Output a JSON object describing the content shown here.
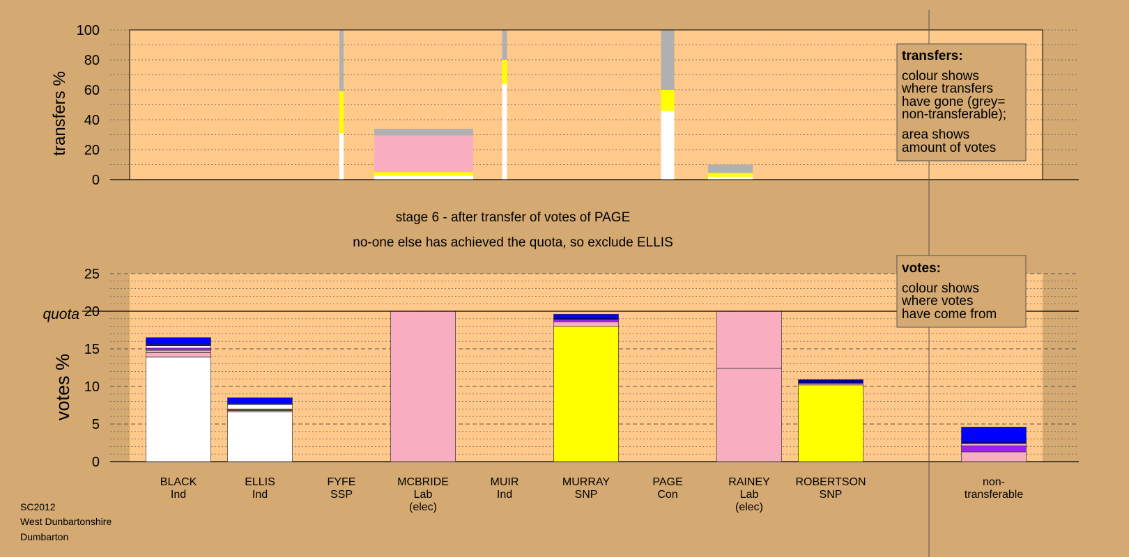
{
  "colors": {
    "background": "#d4a972",
    "plot_area": "#ffc98c",
    "white": "#ffffff",
    "pink": "#f9adc1",
    "yellow": "#ffff00",
    "blue": "#0000ff",
    "navy": "#000080",
    "purple": "#a020f0",
    "brown": "#8b4513",
    "grey": "#b0b0b0"
  },
  "captions": {
    "stage": "stage 6 - after transfer of votes of PAGE",
    "note": "no-one else has achieved the quota, so exclude ELLIS"
  },
  "legend_transfers": {
    "title": "transfers:",
    "lines": [
      "colour shows",
      "where transfers",
      "have gone (grey=",
      "non-transferable);",
      "area shows",
      "amount of votes"
    ]
  },
  "legend_votes": {
    "title": "votes:",
    "lines": [
      "colour shows",
      "where votes",
      "have come from"
    ]
  },
  "footer": [
    "SC2012",
    "West Dunbartonshire",
    "Dumbarton"
  ],
  "chart_data": [
    {
      "type": "bar",
      "ylabel": "transfers %",
      "ylim": [
        0,
        100
      ],
      "yticks": [
        0,
        20,
        40,
        60,
        80,
        100
      ],
      "grid": true,
      "legend_position": "top-right",
      "bars": [
        {
          "category": "FYFE",
          "segments": [
            {
              "color": "white",
              "from": 0,
              "to": 31
            },
            {
              "color": "yellow",
              "from": 31,
              "to": 59
            },
            {
              "color": "grey",
              "from": 59,
              "to": 100
            }
          ]
        },
        {
          "category": "MCBRIDE",
          "segments": [
            {
              "color": "white",
              "from": 0,
              "to": 2.5
            },
            {
              "color": "yellow",
              "from": 2.5,
              "to": 5
            },
            {
              "color": "pink",
              "from": 5,
              "to": 29.5
            },
            {
              "color": "grey",
              "from": 29.5,
              "to": 34
            }
          ]
        },
        {
          "category": "MUIR",
          "segments": [
            {
              "color": "white",
              "from": 0,
              "to": 64
            },
            {
              "color": "yellow",
              "from": 64,
              "to": 80
            },
            {
              "color": "grey",
              "from": 80,
              "to": 100
            }
          ]
        },
        {
          "category": "PAGE",
          "segments": [
            {
              "color": "white",
              "from": 0,
              "to": 46
            },
            {
              "color": "yellow",
              "from": 46,
              "to": 60
            },
            {
              "color": "grey",
              "from": 60,
              "to": 100
            }
          ]
        },
        {
          "category": "RAINEY",
          "segments": [
            {
              "color": "white",
              "from": 0,
              "to": 2
            },
            {
              "color": "yellow",
              "from": 2,
              "to": 4.5
            },
            {
              "color": "grey",
              "from": 4.5,
              "to": 10
            }
          ]
        }
      ]
    },
    {
      "type": "bar",
      "ylabel": "votes %",
      "ylim": [
        0,
        25
      ],
      "yticks": [
        0,
        5,
        10,
        15,
        20,
        25
      ],
      "quota": 20,
      "quota_label": "quota",
      "grid": true,
      "legend_position": "top-right",
      "categories": [
        {
          "name": "BLACK",
          "party": "Ind",
          "elected": ""
        },
        {
          "name": "ELLIS",
          "party": "Ind",
          "elected": ""
        },
        {
          "name": "FYFE",
          "party": "SSP",
          "elected": ""
        },
        {
          "name": "MCBRIDE",
          "party": "Lab",
          "elected": "(elec)"
        },
        {
          "name": "MUIR",
          "party": "Ind",
          "elected": ""
        },
        {
          "name": "MURRAY",
          "party": "SNP",
          "elected": ""
        },
        {
          "name": "PAGE",
          "party": "Con",
          "elected": ""
        },
        {
          "name": "RAINEY",
          "party": "Lab",
          "elected": "(elec)"
        },
        {
          "name": "ROBERTSON",
          "party": "SNP",
          "elected": ""
        },
        {
          "name": "",
          "party": "",
          "elected": ""
        },
        {
          "name": "non-",
          "party": "transferable",
          "elected": ""
        }
      ],
      "bars": [
        {
          "category": "BLACK",
          "segments": [
            {
              "color": "white",
              "value": 13.9
            },
            {
              "color": "pink",
              "value": 0.6
            },
            {
              "color": "pink",
              "value": 0.3
            },
            {
              "color": "purple",
              "value": 0.3
            },
            {
              "color": "white",
              "value": 0.3
            },
            {
              "color": "navy",
              "value": 0.2
            },
            {
              "color": "blue",
              "value": 0.9
            }
          ]
        },
        {
          "category": "ELLIS",
          "segments": [
            {
              "color": "white",
              "value": 6.6
            },
            {
              "color": "pink",
              "value": 0.2
            },
            {
              "color": "brown",
              "value": 0.2
            },
            {
              "color": "white",
              "value": 0.6
            },
            {
              "color": "navy",
              "value": 0.1
            },
            {
              "color": "blue",
              "value": 0.8
            }
          ]
        },
        {
          "category": "FYFE",
          "segments": []
        },
        {
          "category": "MCBRIDE",
          "segments": [
            {
              "color": "pink",
              "value": 20
            }
          ]
        },
        {
          "category": "MUIR",
          "segments": []
        },
        {
          "category": "MURRAY",
          "segments": [
            {
              "color": "yellow",
              "value": 18.0
            },
            {
              "color": "pink",
              "value": 0.6
            },
            {
              "color": "purple",
              "value": 0.3
            },
            {
              "color": "navy",
              "value": 0.3
            },
            {
              "color": "blue",
              "value": 0.4
            }
          ]
        },
        {
          "category": "PAGE",
          "segments": []
        },
        {
          "category": "RAINEY",
          "segments": [
            {
              "color": "pink",
              "value": 12.4
            },
            {
              "color": "pink",
              "value": 7.6
            }
          ]
        },
        {
          "category": "ROBERTSON",
          "segments": [
            {
              "color": "yellow",
              "value": 10.2
            },
            {
              "color": "pink",
              "value": 0.2
            },
            {
              "color": "navy",
              "value": 0.5
            }
          ]
        },
        {
          "category": "",
          "segments": []
        },
        {
          "category": "non-transferable",
          "segments": [
            {
              "color": "pink",
              "value": 1.3
            },
            {
              "color": "purple",
              "value": 0.8
            },
            {
              "color": "pink",
              "value": 0.3
            },
            {
              "color": "navy",
              "value": 0.3
            },
            {
              "color": "blue",
              "value": 1.9
            }
          ]
        }
      ]
    }
  ]
}
